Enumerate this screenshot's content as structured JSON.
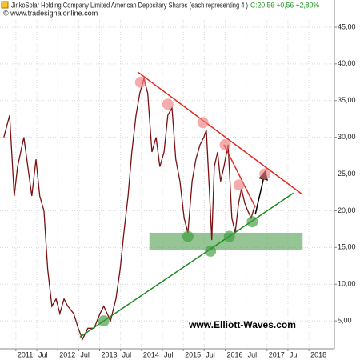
{
  "chart_data": {
    "type": "line",
    "title": "JinkoSolar Holding Company Limited American Depositary Shares (each representing 4 )",
    "price_info": "C:20,56 +0,56 +2,80%",
    "source": "© www.tradesignalonline.com",
    "watermark": "www.Elliott-Waves.com",
    "color": "#7a1010",
    "x": [
      2010.71,
      2010.85,
      2010.96,
      2011.04,
      2011.19,
      2011.38,
      2011.48,
      2011.57,
      2011.67,
      2011.76,
      2011.86,
      2011.96,
      2012.05,
      2012.15,
      2012.24,
      2012.38,
      2012.49,
      2012.59,
      2012.72,
      2012.87,
      2013.01,
      2013.1,
      2013.26,
      2013.39,
      2013.49,
      2013.58,
      2013.68,
      2013.77,
      2013.87,
      2013.96,
      2014.06,
      2014.15,
      2014.25,
      2014.35,
      2014.44,
      2014.54,
      2014.63,
      2014.73,
      2014.82,
      2014.92,
      2015.02,
      2015.11,
      2015.21,
      2015.3,
      2015.4,
      2015.49,
      2015.55,
      2015.63,
      2015.68,
      2015.74,
      2015.82,
      2015.89,
      2015.97,
      2016.07,
      2016.16,
      2016.24,
      2016.32,
      2016.39,
      2016.47,
      2016.54,
      2016.62,
      2016.7
    ],
    "values": [
      30,
      33,
      22,
      26,
      30,
      22,
      27,
      22,
      20,
      12,
      7,
      8,
      6,
      8,
      7,
      6,
      4,
      2.5,
      4,
      4,
      6,
      7,
      5,
      8,
      12,
      17,
      22,
      28,
      33,
      36,
      38,
      36,
      28,
      30,
      26,
      28,
      33,
      34,
      27,
      24,
      19,
      17,
      24,
      27,
      29,
      30,
      31,
      22,
      16,
      26,
      28,
      24,
      26,
      29,
      19,
      17,
      21,
      23,
      21,
      20,
      19,
      20.5
    ],
    "xlim": [
      2010.62,
      2018.61
    ],
    "ylim": [
      1.2,
      48.7
    ],
    "xticks": [
      {
        "value": 2011,
        "label": "2011"
      },
      {
        "value": 2011.5,
        "label": "Jul"
      },
      {
        "value": 2012,
        "label": "2012"
      },
      {
        "value": 2012.5,
        "label": "Jul"
      },
      {
        "value": 2013,
        "label": "2013"
      },
      {
        "value": 2013.5,
        "label": "Jul"
      },
      {
        "value": 2014,
        "label": "2014"
      },
      {
        "value": 2014.5,
        "label": "Jul"
      },
      {
        "value": 2015,
        "label": "2015"
      },
      {
        "value": 2015.5,
        "label": "Jul"
      },
      {
        "value": 2016,
        "label": "2016"
      },
      {
        "value": 2016.5,
        "label": "Jul"
      },
      {
        "value": 2017,
        "label": "2017"
      },
      {
        "value": 2017.5,
        "label": "Jul"
      },
      {
        "value": 2018,
        "label": "2018"
      }
    ],
    "yticks": [
      {
        "value": 5,
        "label": "5,00"
      },
      {
        "value": 10,
        "label": "10,00"
      },
      {
        "value": 15,
        "label": "15,00"
      },
      {
        "value": 20,
        "label": "20,00"
      },
      {
        "value": 25,
        "label": "25,00"
      },
      {
        "value": 30,
        "label": "30,00"
      },
      {
        "value": 35,
        "label": "35,00"
      },
      {
        "value": 40,
        "label": "40,00"
      },
      {
        "value": 45,
        "label": "45,00"
      }
    ],
    "grid": true,
    "zones": [
      {
        "x": [
          2014.19,
          2017.85
        ],
        "y": [
          14.6,
          17.0
        ],
        "color": "#4f9f4f"
      }
    ],
    "lines": [
      {
        "x": [
          2013.91,
          2017.85
        ],
        "y": [
          38.9,
          22.2
        ],
        "color": "#e8261e"
      },
      {
        "x": [
          2012.53,
          2017.63
        ],
        "y": [
          2.8,
          22.4
        ],
        "color": "#1a8a1a"
      },
      {
        "x": [
          2015.97,
          2016.72
        ],
        "y": [
          29,
          20.5
        ],
        "color": "#e8261e"
      },
      {
        "x": [
          2016.72,
          2016.95
        ],
        "y": [
          19.5,
          25.2
        ],
        "color": "#000000",
        "arrow": true
      }
    ],
    "circles": [
      {
        "x": 2013.98,
        "y": 37.5,
        "color": "#f08080"
      },
      {
        "x": 2014.63,
        "y": 34.5,
        "color": "#f08080"
      },
      {
        "x": 2015.47,
        "y": 32,
        "color": "#f08080"
      },
      {
        "x": 2016.0,
        "y": 29,
        "color": "#f08080"
      },
      {
        "x": 2016.33,
        "y": 23.5,
        "color": "#f08080"
      },
      {
        "x": 2016.95,
        "y": 25,
        "color": "#f08080"
      },
      {
        "x": 2013.1,
        "y": 5,
        "color": "#3c9a3c"
      },
      {
        "x": 2015.11,
        "y": 16.5,
        "color": "#3c9a3c"
      },
      {
        "x": 2015.65,
        "y": 14.5,
        "color": "#3c9a3c"
      },
      {
        "x": 2016.1,
        "y": 16.5,
        "color": "#3c9a3c"
      },
      {
        "x": 2016.65,
        "y": 18.5,
        "color": "#3c9a3c"
      }
    ]
  }
}
